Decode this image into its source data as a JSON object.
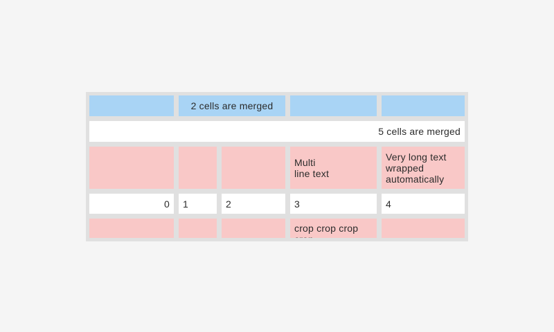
{
  "colors": {
    "page_bg": "#f5f5f5",
    "table_bg": "#e0e0e0",
    "cell_blue": "#a9d4f5",
    "cell_pink": "#f9c8c7",
    "cell_white": "#ffffff",
    "text_color": "#2b2b2b"
  },
  "table": {
    "rows": [
      {
        "cells": [
          {
            "text": ""
          },
          {
            "text": "2 cells are merged"
          },
          {
            "text": ""
          },
          {
            "text": ""
          }
        ]
      },
      {
        "cells": [
          {
            "text": "5 cells are merged"
          }
        ]
      },
      {
        "cells": [
          {
            "text": ""
          },
          {
            "text": ""
          },
          {
            "text": ""
          },
          {
            "text": "Multi\nline text"
          },
          {
            "text": "Very long text wrapped automatically"
          }
        ]
      },
      {
        "cells": [
          {
            "text": "0"
          },
          {
            "text": "1"
          },
          {
            "text": "2"
          },
          {
            "text": "3"
          },
          {
            "text": "4"
          }
        ]
      },
      {
        "cells": [
          {
            "text": ""
          },
          {
            "text": ""
          },
          {
            "text": ""
          },
          {
            "text": "crop crop crop crop"
          },
          {
            "text": ""
          }
        ]
      }
    ]
  }
}
